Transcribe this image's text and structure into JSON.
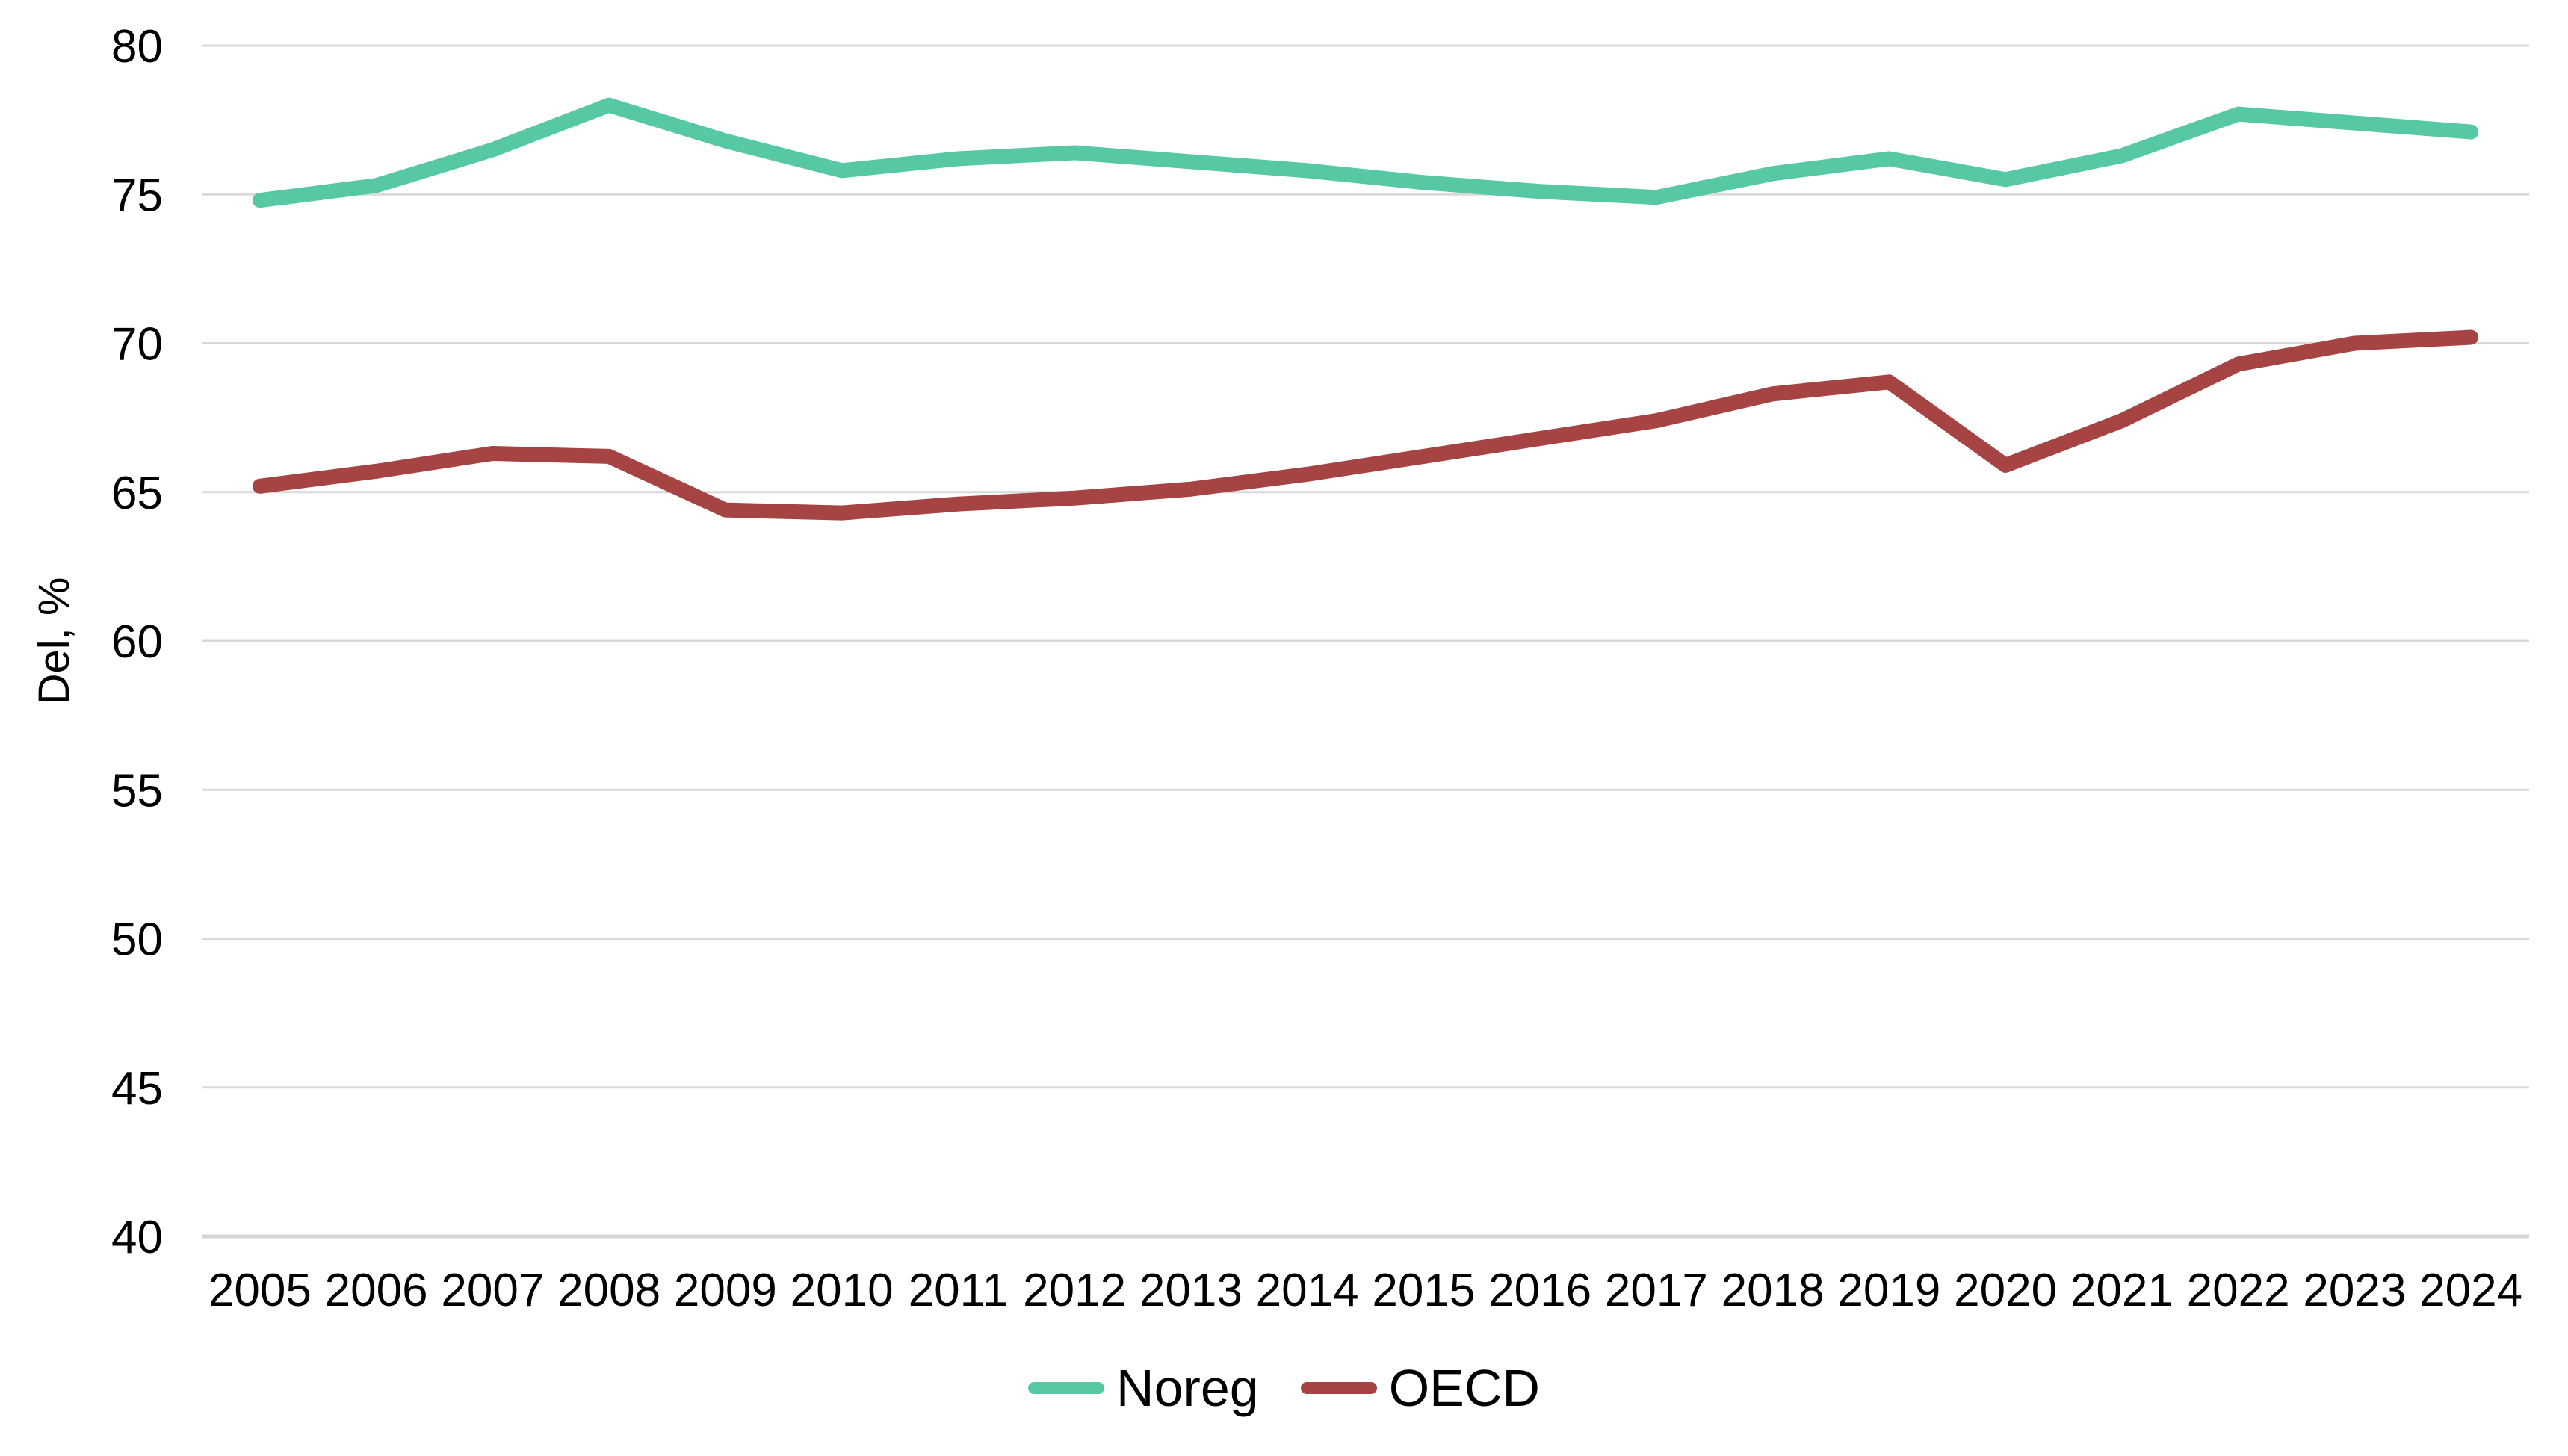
{
  "chart_data": {
    "type": "line",
    "title": "",
    "xlabel": "",
    "ylabel": "Del, %",
    "x": [
      2005,
      2006,
      2007,
      2008,
      2009,
      2010,
      2011,
      2012,
      2013,
      2014,
      2015,
      2016,
      2017,
      2018,
      2019,
      2020,
      2021,
      2022,
      2023,
      2024
    ],
    "series": [
      {
        "name": "Noreg",
        "color": "#57C8A4",
        "values": [
          74.8,
          75.3,
          76.5,
          78.0,
          76.8,
          75.8,
          76.2,
          76.4,
          76.1,
          75.8,
          75.4,
          75.1,
          74.9,
          75.7,
          76.2,
          75.5,
          76.3,
          77.7,
          77.4,
          77.1
        ]
      },
      {
        "name": "OECD",
        "color": "#A64343",
        "values": [
          65.2,
          65.7,
          66.3,
          66.2,
          64.4,
          64.3,
          64.6,
          64.8,
          65.1,
          65.6,
          66.2,
          66.8,
          67.4,
          68.3,
          68.7,
          65.9,
          67.4,
          69.3,
          70.0,
          70.2
        ]
      }
    ],
    "ylim": [
      40,
      80
    ],
    "yticks": [
      40,
      45,
      50,
      55,
      60,
      65,
      70,
      75,
      80
    ],
    "grid": "horizontal",
    "grid_color": "#D9D9D9",
    "axis_line_color": "#D6D6D6",
    "text_color": "#000000",
    "legend_position": "bottom"
  }
}
